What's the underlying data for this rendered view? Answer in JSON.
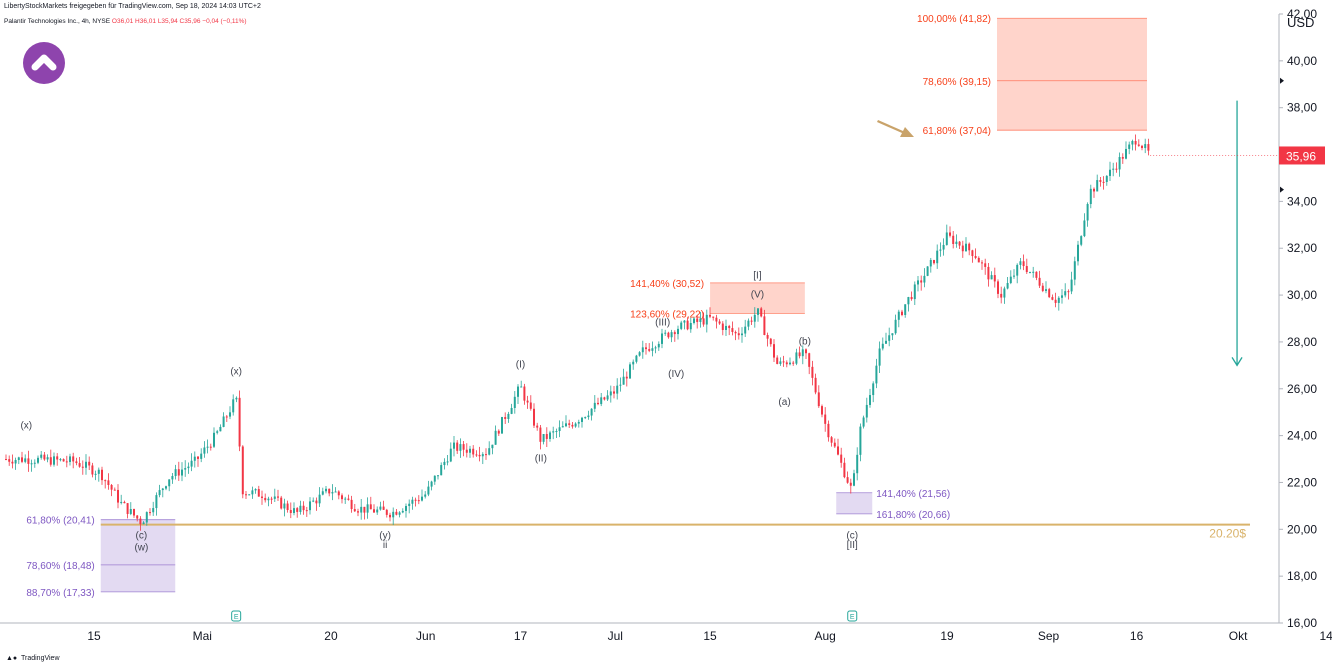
{
  "header": {
    "attribution": "LibertyStockMarkets freigegeben für TradingView.com, Sep 18, 2024 14:03 UTC+2",
    "symbol_line": "Palantir Technologies Inc., 4h, NYSE",
    "ohlc": "O36,01 H36,01 L35,94 C35,96 −0,04 (−0,11%)"
  },
  "currency": "USD",
  "footer": {
    "brand": "TradingView",
    "brand_icon": "tv-logo-icon"
  },
  "colors": {
    "up": "#26a69a",
    "down": "#f23645",
    "fib_red": "#ff5230",
    "fib_purple": "#7e57c2",
    "support": "#d9b36b",
    "arrow": "#26a69a",
    "callout_arrow": "#c9a36a",
    "logo": "#8e44ad"
  },
  "chart_data": {
    "type": "candlestick",
    "title": "Palantir Technologies Inc., 4h, NYSE",
    "ylabel": "USD",
    "ylim": [
      16,
      42
    ],
    "x_tick_labels": [
      "15",
      "Mai",
      "20",
      "Jun",
      "17",
      "Jul",
      "15",
      "Aug",
      "19",
      "Sep",
      "16",
      "Okt",
      "14"
    ],
    "y_tick_labels": [
      "16,00",
      "18,00",
      "20,00",
      "22,00",
      "24,00",
      "26,00",
      "28,00",
      "30,00",
      "32,00",
      "34,00",
      "36,00",
      "38,00",
      "40,00",
      "42,00"
    ],
    "last_price": "35,96",
    "last_price_value": 35.96,
    "support_level": {
      "label": "20.20$",
      "value": 20.2
    },
    "price_path": [
      [
        "2024-04-05",
        23.0
      ],
      [
        "2024-04-12",
        22.9
      ],
      [
        "2024-04-16",
        22.4
      ],
      [
        "2024-04-19",
        21.1
      ],
      [
        "2024-04-22",
        20.3
      ],
      [
        "2024-04-26",
        22.2
      ],
      [
        "2024-04-30",
        22.9
      ],
      [
        "2024-05-03",
        24.0
      ],
      [
        "2024-05-06",
        25.6
      ],
      [
        "2024-05-07",
        21.6
      ],
      [
        "2024-05-10",
        21.5
      ],
      [
        "2024-05-15",
        20.7
      ],
      [
        "2024-05-20",
        21.7
      ],
      [
        "2024-05-24",
        20.9
      ],
      [
        "2024-05-29",
        20.7
      ],
      [
        "2024-06-03",
        21.5
      ],
      [
        "2024-06-07",
        23.5
      ],
      [
        "2024-06-12",
        23.3
      ],
      [
        "2024-06-17",
        26.1
      ],
      [
        "2024-06-20",
        23.8
      ],
      [
        "2024-06-25",
        24.6
      ],
      [
        "2024-07-01",
        25.9
      ],
      [
        "2024-07-05",
        27.6
      ],
      [
        "2024-07-10",
        28.6
      ],
      [
        "2024-07-15",
        29.0
      ],
      [
        "2024-07-19",
        28.3
      ],
      [
        "2024-07-22",
        29.3
      ],
      [
        "2024-07-25",
        27.0
      ],
      [
        "2024-07-29",
        27.5
      ],
      [
        "2024-08-01",
        24.5
      ],
      [
        "2024-08-05",
        21.6
      ],
      [
        "2024-08-06",
        24.0
      ],
      [
        "2024-08-09",
        27.5
      ],
      [
        "2024-08-13",
        29.7
      ],
      [
        "2024-08-16",
        31.0
      ],
      [
        "2024-08-19",
        32.5
      ],
      [
        "2024-08-23",
        31.8
      ],
      [
        "2024-08-27",
        30.0
      ],
      [
        "2024-08-30",
        31.4
      ],
      [
        "2024-09-04",
        29.8
      ],
      [
        "2024-09-06",
        30.1
      ],
      [
        "2024-09-09",
        34.4
      ],
      [
        "2024-09-12",
        35.2
      ],
      [
        "2024-09-16",
        36.7
      ],
      [
        "2024-09-18",
        35.96
      ]
    ],
    "zones": [
      {
        "name": "target-zone",
        "from": 37.04,
        "to": 41.82,
        "color": "red",
        "levels": [
          {
            "label": "100,00% (41,82)",
            "value": 41.82
          },
          {
            "label": "78,60% (39,15)",
            "value": 39.15
          },
          {
            "label": "61,80% (37,04)",
            "value": 37.04
          }
        ]
      },
      {
        "name": "wave-v-zone",
        "from": 29.22,
        "to": 30.52,
        "color": "red",
        "levels": [
          {
            "label": "141,40% (30,52)",
            "value": 30.52
          },
          {
            "label": "123,60% (29,22)",
            "value": 29.22
          }
        ]
      },
      {
        "name": "wave-ii-zone",
        "from": 20.66,
        "to": 21.56,
        "color": "purple",
        "levels": [
          {
            "label": "141,40% (21,56)",
            "value": 21.56
          },
          {
            "label": "161,80% (20,66)",
            "value": 20.66
          }
        ]
      },
      {
        "name": "wave-w-zone",
        "from": 17.33,
        "to": 20.41,
        "color": "purple",
        "levels": [
          {
            "label": "61,80% (20,41)",
            "value": 20.41
          },
          {
            "label": "78,60% (18,48)",
            "value": 18.48
          },
          {
            "label": "88,70% (17,33)",
            "value": 17.33
          }
        ]
      }
    ],
    "wave_labels": [
      {
        "text": "(x)",
        "date": "2024-04-05",
        "price": 24.3
      },
      {
        "text": "(c)",
        "date": "2024-04-22",
        "price": 19.6
      },
      {
        "text": "(w)",
        "date": "2024-04-22",
        "price": 19.1
      },
      {
        "text": "(x)",
        "date": "2024-05-06",
        "price": 26.6
      },
      {
        "text": "(y)",
        "date": "2024-05-28",
        "price": 19.6
      },
      {
        "text": "ii",
        "date": "2024-05-28",
        "price": 19.2
      },
      {
        "text": "(I)",
        "date": "2024-06-17",
        "price": 26.9
      },
      {
        "text": "(II)",
        "date": "2024-06-20",
        "price": 22.9
      },
      {
        "text": "(III)",
        "date": "2024-07-08",
        "price": 28.7
      },
      {
        "text": "(IV)",
        "date": "2024-07-10",
        "price": 26.5
      },
      {
        "text": "(V)",
        "date": "2024-07-22",
        "price": 29.9
      },
      {
        "text": "[I]",
        "date": "2024-07-22",
        "price": 30.7
      },
      {
        "text": "(b)",
        "date": "2024-07-29",
        "price": 27.9
      },
      {
        "text": "(a)",
        "date": "2024-07-26",
        "price": 25.3
      },
      {
        "text": "(c)",
        "date": "2024-08-05",
        "price": 19.6
      },
      {
        "text": "[II]",
        "date": "2024-08-05",
        "price": 19.2
      }
    ],
    "earnings_markers": [
      {
        "date": "2024-05-06",
        "label": "E"
      },
      {
        "date": "2024-08-05",
        "label": "E"
      }
    ],
    "projection": {
      "date": "2024-09-27",
      "from": 38.3,
      "to": 27.0
    }
  }
}
